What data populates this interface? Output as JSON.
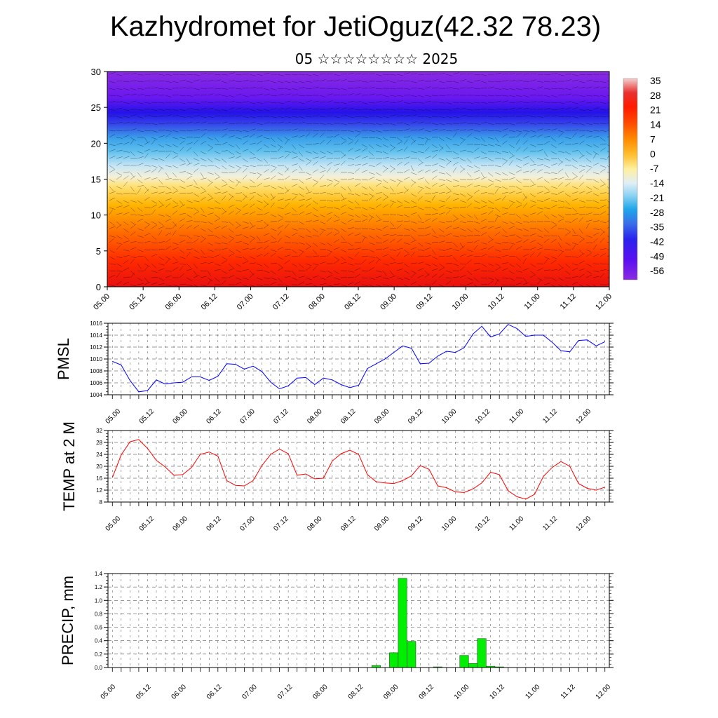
{
  "page": {
    "title": "Kazhydromet for JetiOguz(42.32 78.23)",
    "subtitle": "05 ☆☆☆☆☆☆☆☆ 2025"
  },
  "colors": {
    "pmsl": "#0000ff",
    "temp": "#ff0000",
    "precip": "#00ee00",
    "grid": "#000000"
  },
  "chart_data": [
    {
      "type": "heatmap",
      "title": "",
      "ylim": [
        0,
        30
      ],
      "yticks": [
        0,
        5,
        10,
        15,
        20,
        25,
        30
      ],
      "xticks": [
        "05.00",
        "05.12",
        "06.00",
        "06.12",
        "07.00",
        "07.12",
        "08.00",
        "08.12",
        "09.00",
        "09.12",
        "10.00",
        "10.12",
        "11.00",
        "11.12",
        "12.00"
      ],
      "colorbar": {
        "labels": [
          "35",
          "28",
          "21",
          "14",
          "7",
          "0",
          "-7",
          "-14",
          "-21",
          "-28",
          "-35",
          "-42",
          "-49",
          "-56"
        ],
        "colors": [
          "#f0bcbc",
          "#e83030",
          "#ff2a00",
          "#ff5a00",
          "#ff9a00",
          "#ffd24a",
          "#fff7b0",
          "#c9e6f5",
          "#7fcdf0",
          "#1ea6ea",
          "#3a6fe8",
          "#2a22ee",
          "#5a10f0",
          "#8a2be2"
        ]
      }
    },
    {
      "type": "line",
      "ylabel": "PMSL",
      "ylim": [
        1004,
        1016
      ],
      "yticks": [
        1004,
        1006,
        1008,
        1010,
        1012,
        1014,
        1016
      ],
      "xticks": [
        "05.00",
        "05.12",
        "06.00",
        "06.12",
        "07.00",
        "07.12",
        "08.00",
        "08.12",
        "09.00",
        "09.12",
        "10.00",
        "10.12",
        "11.00",
        "11.12",
        "12.00"
      ],
      "series": [
        {
          "values": [
            1009.6,
            1009.0,
            1006.4,
            1004.5,
            1004.7,
            1006.5,
            1005.8,
            1006.0,
            1006.1,
            1007.0,
            1007.0,
            1006.4,
            1007.1,
            1009.2,
            1009.1,
            1008.3,
            1008.8,
            1007.9,
            1006.1,
            1005.0,
            1005.5,
            1006.8,
            1006.9,
            1005.7,
            1006.8,
            1006.5,
            1005.7,
            1005.2,
            1005.6,
            1008.4,
            1009.2,
            1010.0,
            1011.1,
            1012.2,
            1011.8,
            1009.2,
            1009.3,
            1010.5,
            1011.3,
            1011.1,
            1011.9,
            1014.2,
            1015.5,
            1013.7,
            1014.2,
            1015.8,
            1015.1,
            1013.8,
            1014.0,
            1014.0,
            1012.8,
            1011.4,
            1011.2,
            1013.1,
            1013.2,
            1012.2,
            1012.9
          ]
        }
      ]
    },
    {
      "type": "line",
      "ylabel": "TEMP at 2 M",
      "ylim": [
        8,
        32
      ],
      "yticks": [
        8,
        12,
        16,
        20,
        24,
        28,
        32
      ],
      "xticks": [
        "05.00",
        "05.12",
        "06.00",
        "06.12",
        "07.00",
        "07.12",
        "08.00",
        "08.12",
        "09.00",
        "09.12",
        "10.00",
        "10.12",
        "11.00",
        "11.12",
        "12.00"
      ],
      "series": [
        {
          "values": [
            16.2,
            23.8,
            28.2,
            29.0,
            26.0,
            22.0,
            19.8,
            17.0,
            17.2,
            19.6,
            24.0,
            24.8,
            23.4,
            15.2,
            13.6,
            13.4,
            15.2,
            20.2,
            24.0,
            25.8,
            24.2,
            17.0,
            17.4,
            15.8,
            16.0,
            21.8,
            24.2,
            25.4,
            24.0,
            17.2,
            14.8,
            14.4,
            14.2,
            15.2,
            16.8,
            20.2,
            19.0,
            13.4,
            12.8,
            11.4,
            11.2,
            12.4,
            14.4,
            18.0,
            17.2,
            11.8,
            9.8,
            9.0,
            10.6,
            16.6,
            19.6,
            21.6,
            20.0,
            14.2,
            12.6,
            12.0,
            13.0
          ]
        }
      ]
    },
    {
      "type": "bar",
      "ylabel": "PRECIP, mm",
      "ylim": [
        0,
        1.4
      ],
      "yticks": [
        0.0,
        0.2,
        0.4,
        0.6,
        0.8,
        1.0,
        1.2,
        1.4
      ],
      "ytick_labels": [
        "0.0",
        "0.2",
        "0.4",
        "0.6",
        "0.8",
        "1.0",
        "1.2",
        "1.4"
      ],
      "xticks": [
        "05.00",
        "05.12",
        "06.00",
        "06.12",
        "07.00",
        "07.12",
        "08.00",
        "08.12",
        "09.00",
        "09.12",
        "10.00",
        "10.12",
        "11.00",
        "11.12",
        "12.00"
      ],
      "values": [
        0,
        0,
        0,
        0,
        0,
        0,
        0,
        0,
        0,
        0,
        0,
        0,
        0,
        0,
        0,
        0,
        0,
        0,
        0,
        0,
        0,
        0,
        0,
        0,
        0,
        0,
        0,
        0,
        0,
        0,
        0.03,
        0,
        0.22,
        1.33,
        0.39,
        0,
        0,
        0.01,
        0,
        0,
        0.18,
        0.06,
        0.43,
        0.02,
        0.01,
        0,
        0,
        0,
        0,
        0,
        0,
        0,
        0,
        0,
        0,
        0,
        0
      ]
    }
  ]
}
